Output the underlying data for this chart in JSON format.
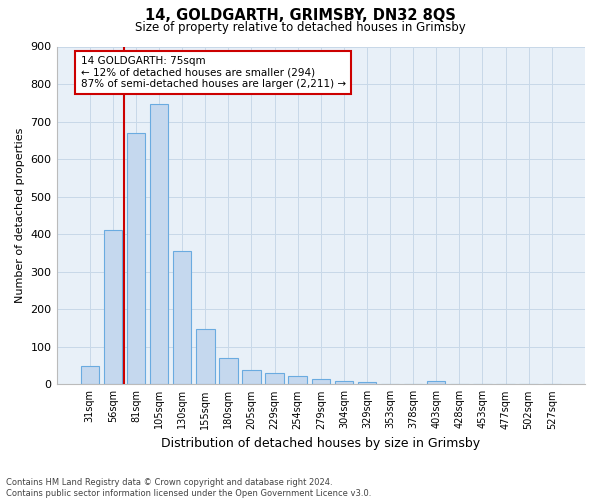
{
  "title1": "14, GOLDGARTH, GRIMSBY, DN32 8QS",
  "title2": "Size of property relative to detached houses in Grimsby",
  "xlabel": "Distribution of detached houses by size in Grimsby",
  "ylabel": "Number of detached properties",
  "categories": [
    "31sqm",
    "56sqm",
    "81sqm",
    "105sqm",
    "130sqm",
    "155sqm",
    "180sqm",
    "205sqm",
    "229sqm",
    "254sqm",
    "279sqm",
    "304sqm",
    "329sqm",
    "353sqm",
    "378sqm",
    "403sqm",
    "428sqm",
    "453sqm",
    "477sqm",
    "502sqm",
    "527sqm"
  ],
  "values": [
    48,
    410,
    670,
    748,
    355,
    148,
    70,
    38,
    30,
    22,
    15,
    9,
    7,
    0,
    0,
    8,
    0,
    0,
    0,
    0,
    0
  ],
  "bar_color": "#c5d8ee",
  "bar_edge_color": "#6aabe0",
  "vline_x": 1.5,
  "annotation_text": "14 GOLDGARTH: 75sqm\n← 12% of detached houses are smaller (294)\n87% of semi-detached houses are larger (2,211) →",
  "annotation_box_color": "#ffffff",
  "annotation_box_edge_color": "#cc0000",
  "vline_color": "#cc0000",
  "grid_color": "#c8d8e8",
  "background_color": "#e8f0f8",
  "ylim": [
    0,
    900
  ],
  "yticks": [
    0,
    100,
    200,
    300,
    400,
    500,
    600,
    700,
    800,
    900
  ],
  "footnote": "Contains HM Land Registry data © Crown copyright and database right 2024.\nContains public sector information licensed under the Open Government Licence v3.0."
}
